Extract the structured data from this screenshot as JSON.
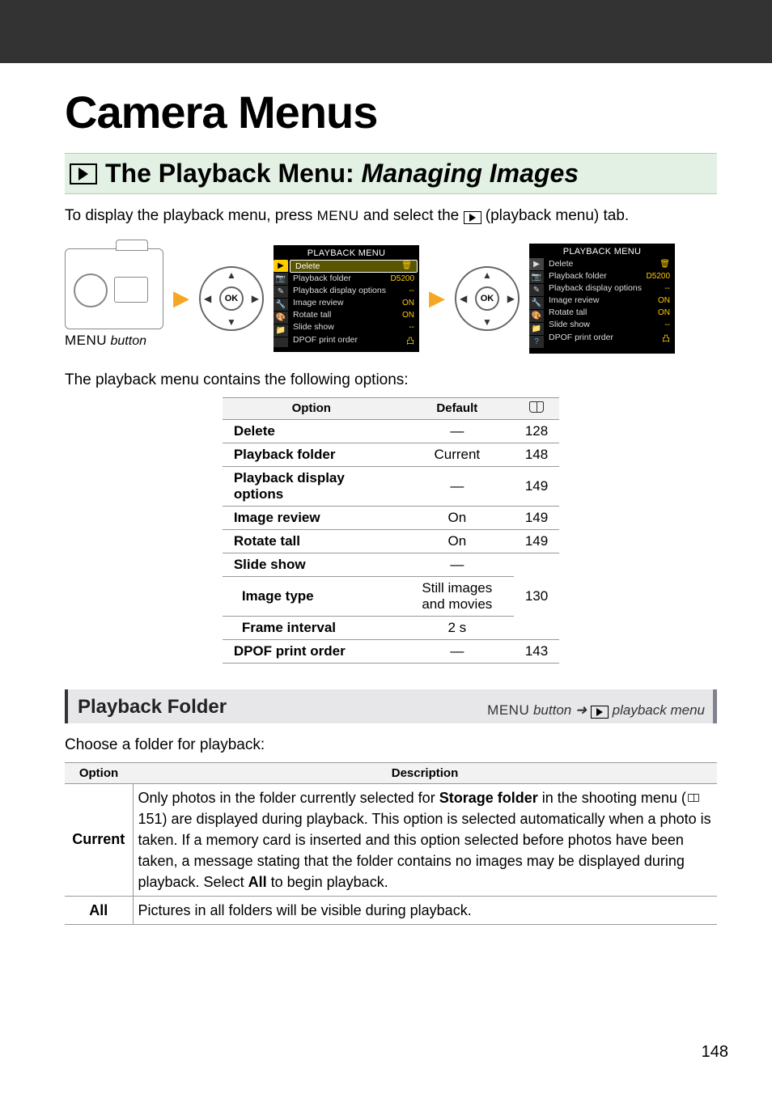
{
  "title": "Camera Menus",
  "section": {
    "main": "The Playback Menu:",
    "italic": "Managing Images"
  },
  "intro": {
    "pre": "To display the playback menu, press ",
    "menu": "MENU",
    "mid": " and select the ",
    "post": " (playback menu) tab."
  },
  "menu_button_caption": {
    "label": "MENU",
    "suffix": " button"
  },
  "lcd": {
    "title": "PLAYBACK MENU",
    "items": [
      {
        "label": "Delete",
        "val": "🗑"
      },
      {
        "label": "Playback folder",
        "val": "D5200"
      },
      {
        "label": "Playback display options",
        "val": "--"
      },
      {
        "label": "Image review",
        "val": "ON"
      },
      {
        "label": "Rotate tall",
        "val": "ON"
      },
      {
        "label": "Slide show",
        "val": "--"
      },
      {
        "label": "DPOF print order",
        "val": "凸"
      }
    ]
  },
  "options_intro": "The playback menu contains the following options:",
  "opts_headers": {
    "option": "Option",
    "default": "Default"
  },
  "opts": [
    {
      "name": "Delete",
      "def": "—",
      "pg": "128"
    },
    {
      "name": "Playback folder",
      "def": "Current",
      "pg": "148"
    },
    {
      "name": "Playback display options",
      "def": "—",
      "pg": "149"
    },
    {
      "name": "Image review",
      "def": "On",
      "pg": "149"
    },
    {
      "name": "Rotate tall",
      "def": "On",
      "pg": "149"
    },
    {
      "name": "Slide show",
      "def": "—",
      "pg": ""
    },
    {
      "name": "Image type",
      "def": "Still images and movies",
      "pg": "130",
      "indent": true
    },
    {
      "name": "Frame interval",
      "def": "2 s",
      "pg": "",
      "indent": true
    },
    {
      "name": "DPOF print order",
      "def": "—",
      "pg": "143"
    }
  ],
  "subheading": {
    "title": "Playback Folder",
    "crumb_menu": "MENU",
    "crumb_mid": " button  ➜  ",
    "crumb_end": " playback menu"
  },
  "folder_intro": "Choose a folder for playback:",
  "desc_headers": {
    "option": "Option",
    "description": "Description"
  },
  "desc_rows": {
    "current": {
      "label": "Current",
      "pre": "Only photos in the folder currently selected for ",
      "bold1": "Storage folder",
      "mid1": " in the shooting menu (",
      "pg": "151",
      "mid2": ") are displayed during playback.  This option is selected automatically when a photo is taken.  If a memory card is inserted and this option selected before photos have been taken, a message stating that the folder contains no images may be displayed during playback.  Select ",
      "bold2": "All",
      "post": " to begin playback."
    },
    "all": {
      "label": "All",
      "text": "Pictures in all folders will be visible during playback."
    }
  },
  "page_number": "148",
  "colors": {
    "section_bg": "#e2f1e4",
    "section_border": "#a8d4ae",
    "arrow": "#f5a623",
    "lcd_bg": "#000000",
    "lcd_val": "#ffcc00",
    "sub_bg": "#e7e7ea",
    "sub_border_right": "#808290"
  }
}
